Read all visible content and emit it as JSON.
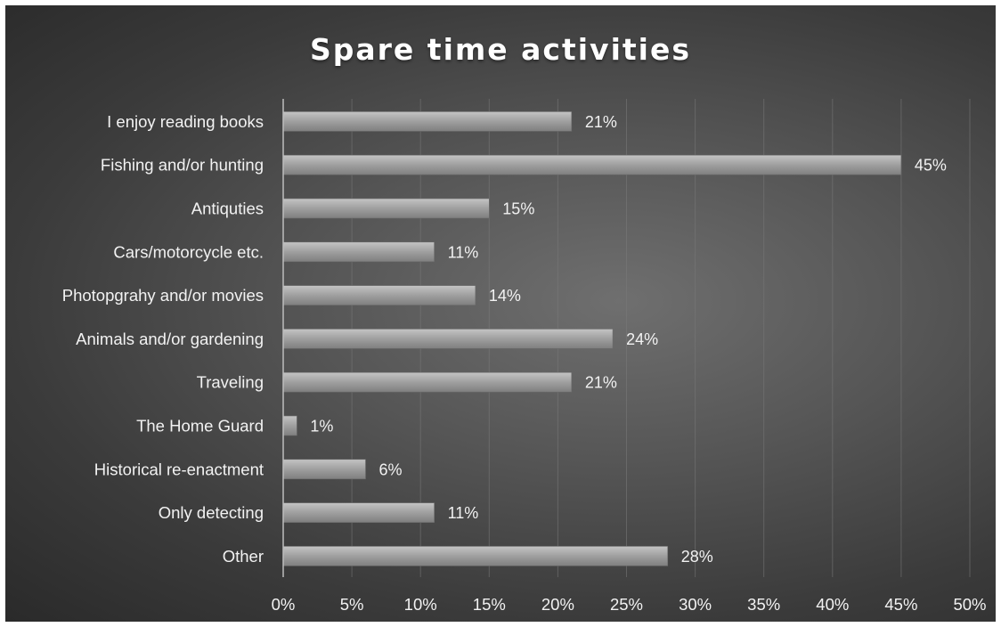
{
  "chart_data": {
    "type": "bar",
    "orientation": "horizontal",
    "title": "Spare time activities",
    "xlabel": "",
    "ylabel": "",
    "categories": [
      "I enjoy reading books",
      "Fishing and/or hunting",
      "Antiquties",
      "Cars/motorcycle etc.",
      "Photopgrahy and/or movies",
      "Animals and/or gardening",
      "Traveling",
      "The Home Guard",
      "Historical re-enactment",
      "Only detecting",
      "Other"
    ],
    "values": [
      21,
      45,
      15,
      11,
      14,
      24,
      21,
      1,
      6,
      11,
      28
    ],
    "value_labels": [
      "21%",
      "45%",
      "15%",
      "11%",
      "14%",
      "24%",
      "21%",
      "1%",
      "6%",
      "11%",
      "28%"
    ],
    "xlim": [
      0,
      50
    ],
    "x_ticks": [
      0,
      5,
      10,
      15,
      20,
      25,
      30,
      35,
      40,
      45,
      50
    ],
    "x_tick_labels": [
      "0%",
      "5%",
      "10%",
      "15%",
      "20%",
      "25%",
      "30%",
      "35%",
      "40%",
      "45%",
      "50%"
    ],
    "grid": "vertical",
    "legend": "none",
    "colors": {
      "bar": "#9a9a9a",
      "background": "#4a4a4a",
      "text": "#f2f2f2"
    }
  }
}
